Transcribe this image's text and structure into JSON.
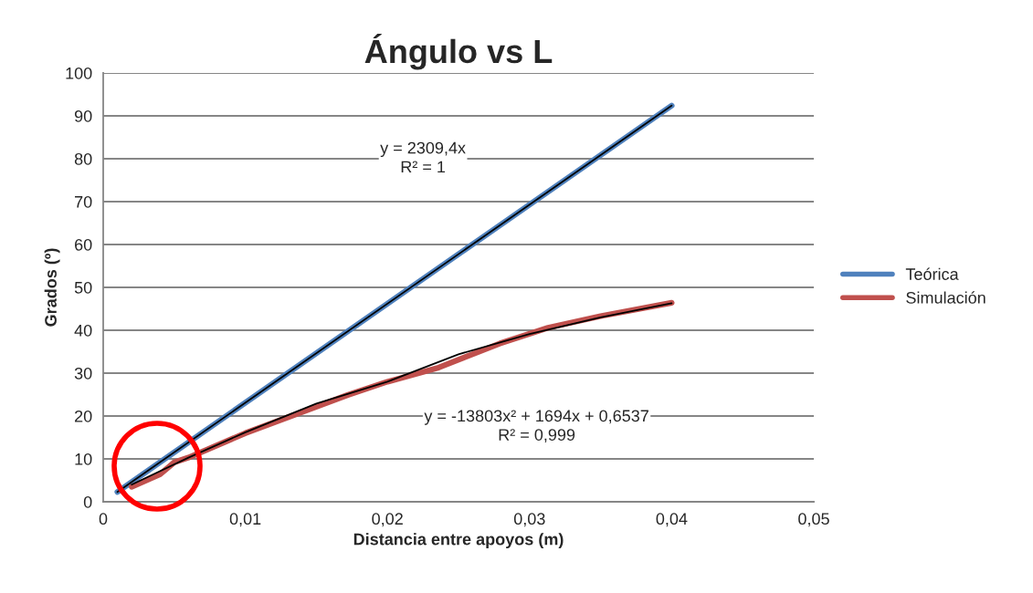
{
  "chart_data": {
    "type": "line",
    "title": "Ángulo vs L",
    "xlabel": "Distancia entre apoyos (m)",
    "ylabel": "Grados (º)",
    "xlim": [
      0,
      0.05
    ],
    "ylim": [
      0,
      100
    ],
    "xticks": [
      {
        "value": 0,
        "label": "0"
      },
      {
        "value": 0.01,
        "label": "0,01"
      },
      {
        "value": 0.02,
        "label": "0,02"
      },
      {
        "value": 0.03,
        "label": "0,03"
      },
      {
        "value": 0.04,
        "label": "0,04"
      },
      {
        "value": 0.05,
        "label": "0,05"
      }
    ],
    "yticks": [
      0,
      10,
      20,
      30,
      40,
      50,
      60,
      70,
      80,
      90,
      100
    ],
    "grid": "y",
    "legend": "right",
    "marker": "none",
    "line_style": "solid",
    "series": [
      {
        "name": "Teórica",
        "color": "#4f81bd",
        "x": [
          0.001,
          0.04
        ],
        "values": [
          2.3,
          92.4
        ]
      },
      {
        "name": "Simulación",
        "color": "#c0504d",
        "x": [
          0.002,
          0.004,
          0.005,
          0.006,
          0.01,
          0.0172,
          0.02,
          0.0236,
          0.0279,
          0.0313,
          0.035,
          0.04
        ],
        "values": [
          3.5,
          6.4,
          9.2,
          10.3,
          16,
          24.9,
          28,
          31.3,
          36.9,
          40.6,
          43.3,
          46.4
        ]
      },
      {
        "color": "#000000",
        "x": [
          0.001,
          0.04
        ],
        "values": [
          2.3,
          92.4
        ]
      },
      {
        "color": "#000000",
        "x": [
          0.002,
          0.006,
          0.01,
          0.015,
          0.02,
          0.025,
          0.03,
          0.035,
          0.04
        ],
        "values": [
          4.0,
          10.3,
          16.2,
          22.9,
          28.0,
          34.4,
          39.1,
          43.0,
          46.3
        ]
      }
    ],
    "annotations": [
      "y = 2309,4x\nR² = 1",
      "y = -13803x² + 1694x + 0,6537\nR² = 0,999"
    ]
  }
}
